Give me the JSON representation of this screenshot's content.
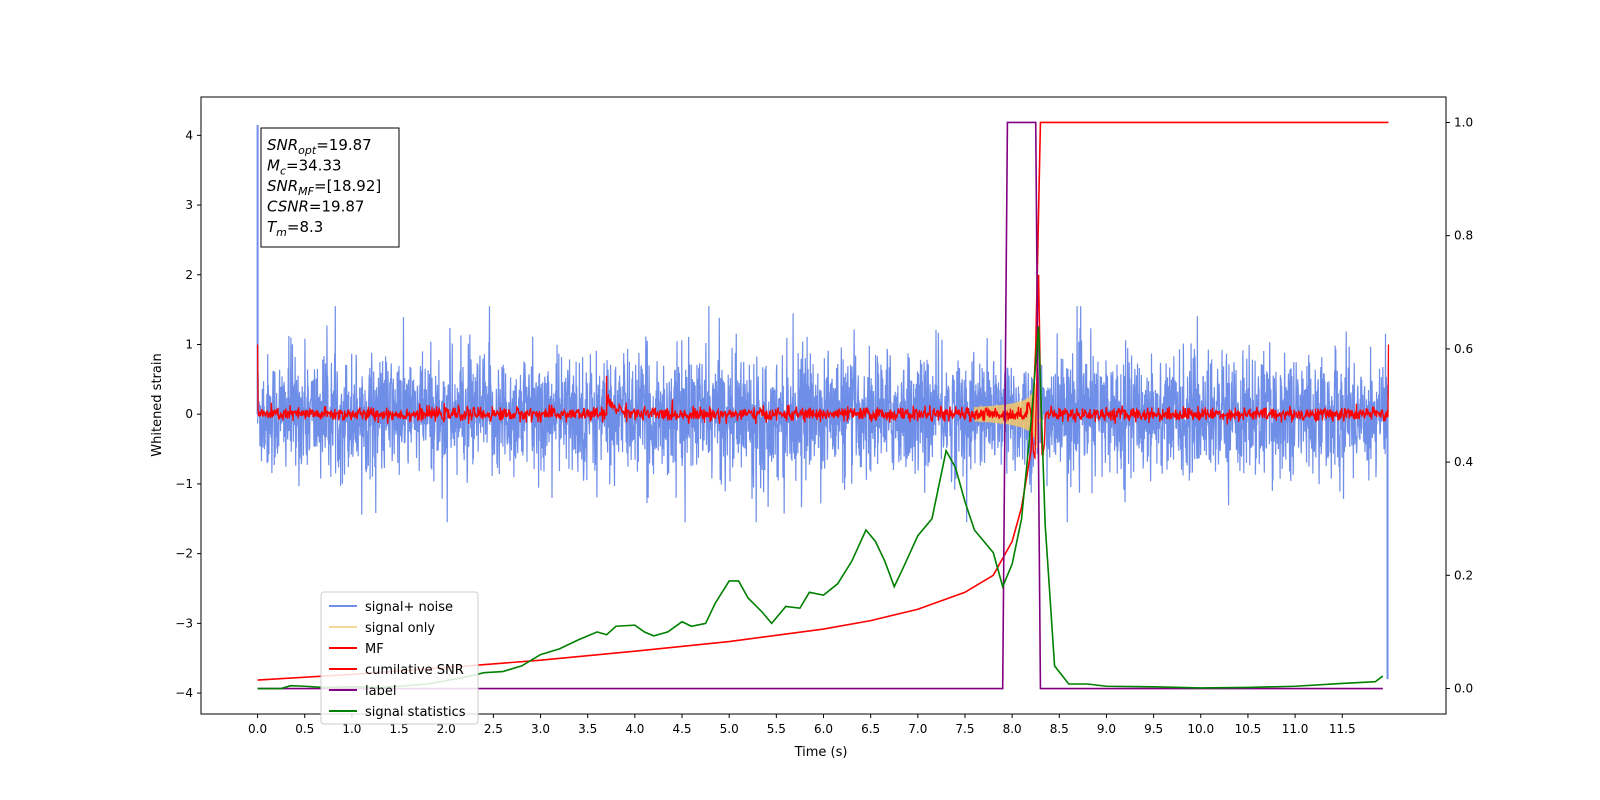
{
  "chart_data": {
    "type": "line",
    "title": "",
    "xlabel": "Time (s)",
    "ylabel": "Whitened strain",
    "y2label": "",
    "xlim": [
      -0.6,
      12.6
    ],
    "ylim": [
      -4.3,
      4.55
    ],
    "y2lim": [
      -0.045,
      1.045
    ],
    "x_ticks": [
      0.0,
      0.5,
      1.0,
      1.5,
      2.0,
      2.5,
      3.0,
      3.5,
      4.0,
      4.5,
      5.0,
      5.5,
      6.0,
      6.5,
      7.0,
      7.5,
      8.0,
      8.5,
      9.0,
      9.5,
      10.0,
      10.5,
      11.0,
      11.5
    ],
    "x_tick_labels": [
      "0.0",
      "0.5",
      "1.0",
      "1.5",
      "2.0",
      "2.5",
      "3.0",
      "3.5",
      "4.0",
      "4.5",
      "5.0",
      "5.5",
      "6.0",
      "6.5",
      "7.0",
      "7.5",
      "8.0",
      "8.5",
      "9.0",
      "9.5",
      "10.0",
      "10.5",
      "11.0",
      "11.5"
    ],
    "y_ticks": [
      -4,
      -3,
      -2,
      -1,
      0,
      1,
      2,
      3,
      4
    ],
    "y_tick_labels": [
      "−4",
      "−3",
      "−2",
      "−1",
      "0",
      "1",
      "2",
      "3",
      "4"
    ],
    "y2_ticks": [
      0.0,
      0.2,
      0.4,
      0.6,
      0.8,
      1.0
    ],
    "y2_tick_labels": [
      "0.0",
      "0.2",
      "0.4",
      "0.6",
      "0.8",
      "1.0"
    ],
    "grid": false,
    "legend_position": "lower-left",
    "series": [
      {
        "name": "signal+ noise",
        "axis": "left",
        "color": "#6f8ee8",
        "style": "dense-noise",
        "amplitude_envelope": {
          "typical": 0.85,
          "peak": 1.55
        },
        "edge_spikes": [
          {
            "x": 0.0,
            "y": 4.15
          },
          {
            "x": 11.98,
            "y": -3.8
          }
        ],
        "x_range": [
          0.0,
          11.99
        ]
      },
      {
        "name": "signal only",
        "axis": "left",
        "color": "#f5c86a",
        "style": "chirp",
        "chirp": {
          "start_x": 7.6,
          "peak_x": 8.27,
          "end_x": 8.32,
          "peak_amplitude": 0.6
        }
      },
      {
        "name": "MF",
        "axis": "left",
        "color": "#ff0000",
        "style": "matched-filter",
        "noise_amplitude": 0.05,
        "features": [
          {
            "x": 0.0,
            "y": 1.0
          },
          {
            "x": 3.7,
            "y": 0.55
          },
          {
            "x": 8.28,
            "y": 2.1
          },
          {
            "x": 11.99,
            "y": 1.0
          }
        ],
        "x_range": [
          0.0,
          11.99
        ]
      },
      {
        "name": "cumilative SNR",
        "axis": "right",
        "color": "#ff0000",
        "style": "line",
        "points": [
          [
            0.0,
            0.015
          ],
          [
            1.0,
            0.025
          ],
          [
            2.0,
            0.037
          ],
          [
            3.0,
            0.05
          ],
          [
            4.0,
            0.066
          ],
          [
            5.0,
            0.083
          ],
          [
            6.0,
            0.105
          ],
          [
            6.5,
            0.12
          ],
          [
            7.0,
            0.14
          ],
          [
            7.5,
            0.17
          ],
          [
            7.8,
            0.2
          ],
          [
            8.0,
            0.26
          ],
          [
            8.1,
            0.32
          ],
          [
            8.2,
            0.42
          ],
          [
            8.25,
            0.6
          ],
          [
            8.3,
            1.0
          ],
          [
            11.99,
            1.0
          ]
        ]
      },
      {
        "name": "label",
        "axis": "right",
        "color": "#800080",
        "style": "line",
        "points": [
          [
            0.0,
            0.0
          ],
          [
            7.9,
            0.0
          ],
          [
            7.95,
            1.0
          ],
          [
            8.25,
            1.0
          ],
          [
            8.3,
            0.0
          ],
          [
            11.93,
            0.0
          ]
        ]
      },
      {
        "name": "signal statistics",
        "axis": "right",
        "color": "#008000",
        "style": "line",
        "points": [
          [
            0.0,
            0.0
          ],
          [
            0.25,
            0.0
          ],
          [
            0.35,
            0.005
          ],
          [
            0.5,
            0.004
          ],
          [
            0.7,
            0.002
          ],
          [
            1.0,
            0.003
          ],
          [
            1.3,
            0.002
          ],
          [
            1.5,
            0.004
          ],
          [
            1.8,
            0.008
          ],
          [
            2.0,
            0.014
          ],
          [
            2.2,
            0.02
          ],
          [
            2.4,
            0.028
          ],
          [
            2.6,
            0.03
          ],
          [
            2.8,
            0.04
          ],
          [
            3.0,
            0.06
          ],
          [
            3.2,
            0.07
          ],
          [
            3.4,
            0.086
          ],
          [
            3.6,
            0.1
          ],
          [
            3.7,
            0.095
          ],
          [
            3.8,
            0.11
          ],
          [
            4.0,
            0.112
          ],
          [
            4.1,
            0.1
          ],
          [
            4.2,
            0.093
          ],
          [
            4.35,
            0.1
          ],
          [
            4.5,
            0.118
          ],
          [
            4.6,
            0.11
          ],
          [
            4.75,
            0.115
          ],
          [
            4.85,
            0.15
          ],
          [
            5.0,
            0.19
          ],
          [
            5.1,
            0.19
          ],
          [
            5.2,
            0.16
          ],
          [
            5.35,
            0.135
          ],
          [
            5.45,
            0.115
          ],
          [
            5.6,
            0.145
          ],
          [
            5.75,
            0.142
          ],
          [
            5.85,
            0.17
          ],
          [
            6.0,
            0.165
          ],
          [
            6.15,
            0.185
          ],
          [
            6.3,
            0.225
          ],
          [
            6.45,
            0.28
          ],
          [
            6.55,
            0.26
          ],
          [
            6.65,
            0.225
          ],
          [
            6.75,
            0.18
          ],
          [
            6.85,
            0.215
          ],
          [
            7.0,
            0.27
          ],
          [
            7.15,
            0.3
          ],
          [
            7.3,
            0.42
          ],
          [
            7.4,
            0.39
          ],
          [
            7.5,
            0.33
          ],
          [
            7.6,
            0.28
          ],
          [
            7.8,
            0.24
          ],
          [
            7.9,
            0.18
          ],
          [
            8.0,
            0.22
          ],
          [
            8.1,
            0.3
          ],
          [
            8.2,
            0.47
          ],
          [
            8.28,
            0.64
          ],
          [
            8.35,
            0.29
          ],
          [
            8.45,
            0.04
          ],
          [
            8.6,
            0.008
          ],
          [
            8.8,
            0.008
          ],
          [
            9.0,
            0.004
          ],
          [
            9.5,
            0.003
          ],
          [
            10.0,
            0.001
          ],
          [
            10.5,
            0.002
          ],
          [
            11.0,
            0.004
          ],
          [
            11.5,
            0.009
          ],
          [
            11.85,
            0.012
          ],
          [
            11.93,
            0.022
          ]
        ]
      }
    ]
  },
  "info_box": {
    "lines": [
      {
        "name": "SNR",
        "sub": "opt",
        "value": "=19.87"
      },
      {
        "name": "M",
        "sub": "c",
        "value": "=34.33"
      },
      {
        "name": "SNR",
        "sub": "MF",
        "value": "=[18.92]"
      },
      {
        "name": "CSNR",
        "sub": "",
        "value": "=19.87"
      },
      {
        "name": "T",
        "sub": "m",
        "value": "=8.3"
      }
    ]
  }
}
